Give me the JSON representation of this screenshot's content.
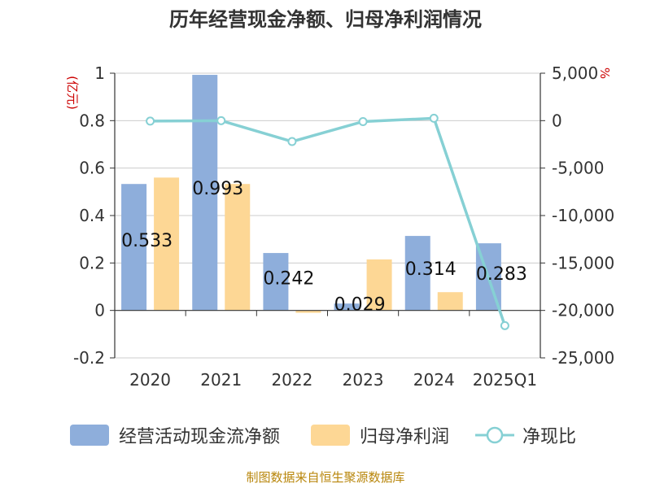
{
  "chart_data": {
    "type": "bar",
    "title": "历年经营现金净额、归母净利润情况",
    "categories": [
      "2020",
      "2021",
      "2022",
      "2023",
      "2024",
      "2025Q1"
    ],
    "y_left": {
      "unit": "(亿元)",
      "ylim": [
        -0.2,
        1
      ],
      "ticks": [
        "1",
        "0.8",
        "0.6",
        "0.4",
        "0.2",
        "0",
        "-0.2"
      ],
      "tick_values": [
        1,
        0.8,
        0.6,
        0.4,
        0.2,
        0,
        -0.2
      ]
    },
    "y_right": {
      "unit": "%",
      "ylim": [
        -25000,
        5000
      ],
      "ticks": [
        "5,000",
        "0",
        "-5,000",
        "-10,000",
        "-15,000",
        "-20,000",
        "-25,000"
      ],
      "tick_values": [
        5000,
        0,
        -5000,
        -10000,
        -15000,
        -20000,
        -25000
      ]
    },
    "series": [
      {
        "name": "经营活动现金流净额",
        "type": "bar",
        "axis": "left",
        "color": "#8eaedb",
        "values": [
          0.533,
          0.993,
          0.242,
          0.029,
          0.314,
          0.283
        ],
        "labels": [
          "0.533",
          "0.993",
          "0.242",
          "0.029",
          "0.314",
          "0.283"
        ]
      },
      {
        "name": "归母净利润",
        "type": "bar",
        "axis": "left",
        "color": "#fdd795",
        "values": [
          0.56,
          0.533,
          -0.01,
          0.215,
          0.077,
          0
        ]
      },
      {
        "name": "净现比",
        "type": "line",
        "axis": "right",
        "color": "#86d0d4",
        "values": [
          -50,
          0,
          -2200,
          -100,
          250,
          -21600
        ]
      }
    ],
    "legend_position": "bottom",
    "grid": true
  },
  "source": "制图数据来自恒生聚源数据库"
}
